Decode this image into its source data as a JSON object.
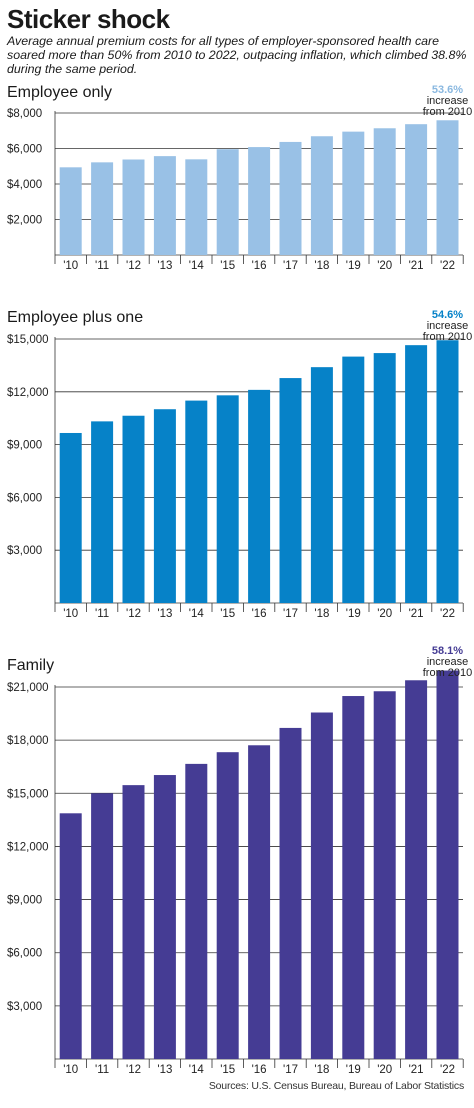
{
  "header": {
    "title": "Sticker shock",
    "subtitle": "Average annual premium costs for all types of employer-sponsored health care soared more than 50% from 2010 to 2022, outpacing inflation, which climbed  38.8% during the same period."
  },
  "source": "Sources: U.S. Census Bureau, Bureau of Labor Statistics",
  "chart_data": [
    {
      "type": "bar",
      "title": "Employee only",
      "categories": [
        "'10",
        "'11",
        "'12",
        "'13",
        "'14",
        "'15",
        "'16",
        "'17",
        "'18",
        "'19",
        "'20",
        "'21",
        "'22"
      ],
      "values": [
        4940,
        5220,
        5380,
        5570,
        5390,
        5960,
        6080,
        6370,
        6690,
        6950,
        7140,
        7370,
        7590
      ],
      "ylim": [
        0,
        8000
      ],
      "yticks": [
        2000,
        4000,
        6000,
        8000
      ],
      "ytick_labels": [
        "$2,000",
        "$4,000",
        "$6,000",
        "$8,000"
      ],
      "color": "#99c1e6",
      "annotation": {
        "pct": "53.6%",
        "line1": "increase",
        "line2": "from 2010",
        "color": "#8ab8e0"
      }
    },
    {
      "type": "bar",
      "title": "Employee plus one",
      "categories": [
        "'10",
        "'11",
        "'12",
        "'13",
        "'14",
        "'15",
        "'16",
        "'17",
        "'18",
        "'19",
        "'20",
        "'21",
        "'22"
      ],
      "values": [
        9660,
        10320,
        10640,
        11010,
        11500,
        11800,
        12110,
        12780,
        13400,
        14000,
        14200,
        14650,
        14930
      ],
      "ylim": [
        0,
        15000
      ],
      "yticks": [
        3000,
        6000,
        9000,
        12000,
        15000
      ],
      "ytick_labels": [
        "$3,000",
        "$6,000",
        "$9,000",
        "$12,000",
        "$15,000"
      ],
      "color": "#0682c8",
      "annotation": {
        "pct": "54.6%",
        "line1": "increase",
        "line2": "from 2010",
        "color": "#0682c8"
      }
    },
    {
      "type": "bar",
      "title": "Family",
      "categories": [
        "'10",
        "'11",
        "'12",
        "'13",
        "'14",
        "'15",
        "'16",
        "'17",
        "'18",
        "'19",
        "'20",
        "'21",
        "'22"
      ],
      "values": [
        13870,
        15000,
        15460,
        16030,
        16660,
        17320,
        17710,
        18690,
        19560,
        20490,
        20760,
        21380,
        21930
      ],
      "ylim": [
        0,
        21000
      ],
      "yticks": [
        3000,
        6000,
        9000,
        12000,
        15000,
        18000,
        21000
      ],
      "ytick_labels": [
        "$3,000",
        "$6,000",
        "$9,000",
        "$12,000",
        "$15,000",
        "$18,000",
        "$21,000"
      ],
      "color": "#453c94",
      "annotation": {
        "pct": "58.1%",
        "line1": "increase",
        "line2": "from 2010",
        "color": "#453c94"
      }
    }
  ]
}
